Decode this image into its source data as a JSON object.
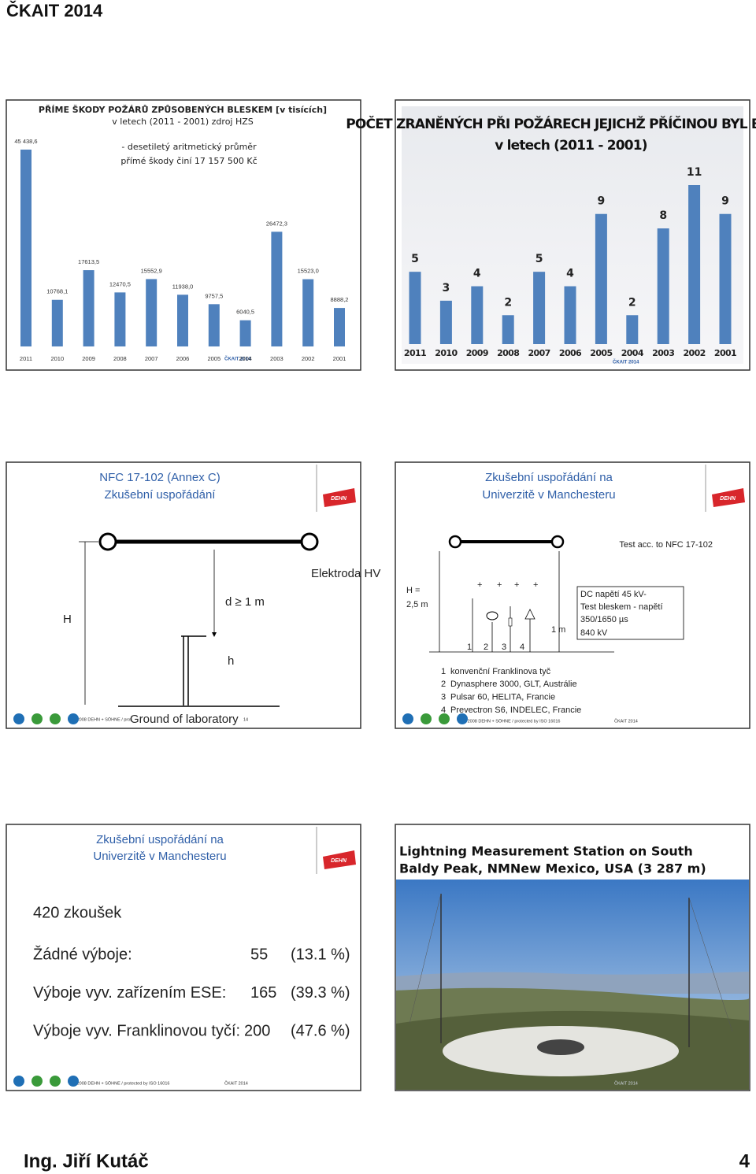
{
  "header": {
    "title": "ČKAIT 2014"
  },
  "brand": "DEHN",
  "chart_data": [
    {
      "type": "bar",
      "title": "PŘÍME ŠKODY POŽÁRŮ ZPŮSOBENÝCH BLESKEM [v tisících]",
      "subtitle": "v letech (2011 - 2001) zdroj HZS",
      "annotation": [
        "- desetiletý aritmetický průměr",
        "přímé škody činí 17 157 500 Kč"
      ],
      "watermark": "ČKAIT 2014",
      "categories": [
        "2011",
        "2010",
        "2009",
        "2008",
        "2007",
        "2006",
        "2005",
        "2004",
        "2003",
        "2002",
        "2001"
      ],
      "values": [
        45438.6,
        10768.1,
        17613.5,
        12470.5,
        15552.9,
        11938.0,
        9757.5,
        6040.5,
        26472.3,
        15523.0,
        8888.2
      ],
      "value_labels": [
        "45 438,6",
        "10768,1",
        "17613,5",
        "12470,5",
        "15552,9",
        "11938,0",
        "9757,5",
        "6040,5",
        "26472,3",
        "15523,0",
        "8888,2"
      ],
      "color": "#4f81bd"
    },
    {
      "type": "bar",
      "title": "POČET ZRANĚNÝCH PŘI POŽÁRECH JEJICHŽ PŘÍČINOU BYL BLESK",
      "subtitle": "v letech (2011 - 2001)",
      "watermark": "ČKAIT 2014",
      "categories": [
        "2011",
        "2010",
        "2009",
        "2008",
        "2007",
        "2006",
        "2005",
        "2004",
        "2003",
        "2002",
        "2001"
      ],
      "values": [
        5,
        3,
        4,
        2,
        5,
        4,
        9,
        2,
        8,
        11,
        9
      ],
      "color": "#4f81bd"
    }
  ],
  "slide3": {
    "title": [
      "NFC 17-102 (Annex C)",
      "Zkušební uspořádání"
    ],
    "labels": {
      "electrode": "Elektroda HV",
      "H": "H",
      "d": "d ≥ 1 m",
      "h": "h",
      "ground": "Ground of laboratory"
    },
    "footer": "© 2008 DEHN + SÖHNE / prot",
    "page": "14"
  },
  "slide4": {
    "title": [
      "Zkušební uspořádání na",
      "Univerzitě v Manchesteru"
    ],
    "test": "Test acc. to NFC 17-102",
    "height": [
      "H =",
      "2,5 m"
    ],
    "box": [
      "DC napětí 45 kV-",
      "Test bleskem - napětí",
      "350/1650 µs",
      "840 kV"
    ],
    "spacing": "1 m",
    "list": [
      {
        "n": "1",
        "text": "konvenční Franklinova tyč"
      },
      {
        "n": "2",
        "text": "Dynasphere 3000, GLT, Austrálie"
      },
      {
        "n": "3",
        "text": "Pulsar 60, HELITA, Francie"
      },
      {
        "n": "4",
        "text": "Prevectron S6, INDELEC, Francie"
      }
    ],
    "footer": "© 2008 DEHN + SÖHNE / protected by ISO 16016",
    "mark": "ČKAIT 2014"
  },
  "slide5": {
    "title": [
      "Zkušební uspořádání na",
      "Univerzitě v Manchesteru"
    ],
    "tests": "420 zkoušek",
    "rows": [
      [
        "Žádné výboje:",
        "55",
        "(13.1 %)"
      ],
      [
        "Výboje vyv. zařízením ESE:",
        "165",
        "(39.3 %)"
      ],
      [
        "Výboje vyv. Franklinovou tyčí:",
        "200",
        "(47.6 %)"
      ]
    ],
    "footer": "© 2008 DEHN + SÖHNE / protected by ISO 16016",
    "mark": "ČKAIT 2014"
  },
  "slide6": {
    "title": [
      "Lightning Measurement Station on South",
      "Baldy Peak, NMNew Mexico, USA (3 287 m)"
    ],
    "mark": "ČKAIT 2014"
  },
  "footer": {
    "author": "Ing. Jiří Kutáč",
    "page": "4"
  }
}
